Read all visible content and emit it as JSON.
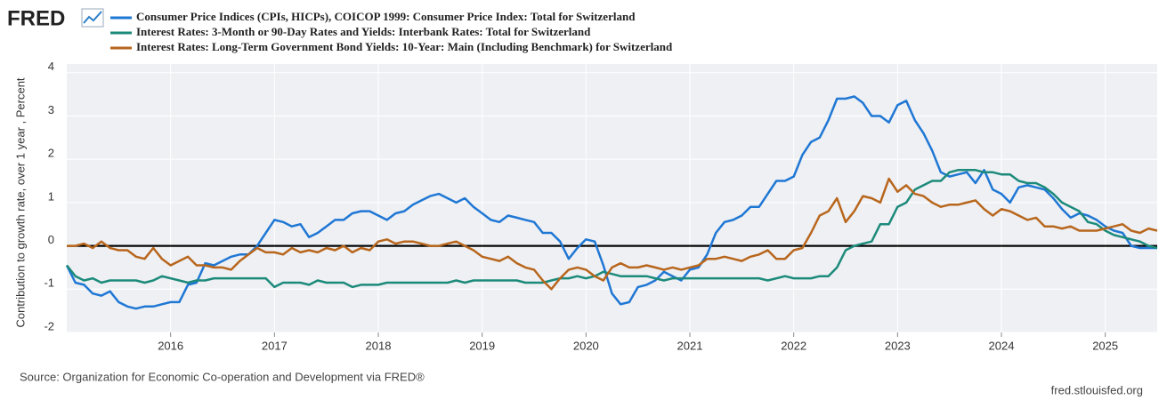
{
  "logo": "FRED",
  "chart_data": {
    "type": "line",
    "y_label": "Contribution to growth rate, over 1 year , Percent",
    "source": "Source: Organization for Economic Co-operation and Development via FRED®",
    "site": "fred.stlouisfed.org",
    "xlim": [
      "2015-01",
      "2025-07"
    ],
    "xticks": [
      2016,
      2017,
      2018,
      2019,
      2020,
      2021,
      2022,
      2023,
      2024,
      2025
    ],
    "ylim": [
      -2,
      4.2
    ],
    "yticks": [
      -2,
      -1,
      0,
      1,
      2,
      3,
      4
    ],
    "grid": true,
    "x": [
      "2015-01",
      "2015-02",
      "2015-03",
      "2015-04",
      "2015-05",
      "2015-06",
      "2015-07",
      "2015-08",
      "2015-09",
      "2015-10",
      "2015-11",
      "2015-12",
      "2016-01",
      "2016-02",
      "2016-03",
      "2016-04",
      "2016-05",
      "2016-06",
      "2016-07",
      "2016-08",
      "2016-09",
      "2016-10",
      "2016-11",
      "2016-12",
      "2017-01",
      "2017-02",
      "2017-03",
      "2017-04",
      "2017-05",
      "2017-06",
      "2017-07",
      "2017-08",
      "2017-09",
      "2017-10",
      "2017-11",
      "2017-12",
      "2018-01",
      "2018-02",
      "2018-03",
      "2018-04",
      "2018-05",
      "2018-06",
      "2018-07",
      "2018-08",
      "2018-09",
      "2018-10",
      "2018-11",
      "2018-12",
      "2019-01",
      "2019-02",
      "2019-03",
      "2019-04",
      "2019-05",
      "2019-06",
      "2019-07",
      "2019-08",
      "2019-09",
      "2019-10",
      "2019-11",
      "2019-12",
      "2020-01",
      "2020-02",
      "2020-03",
      "2020-04",
      "2020-05",
      "2020-06",
      "2020-07",
      "2020-08",
      "2020-09",
      "2020-10",
      "2020-11",
      "2020-12",
      "2021-01",
      "2021-02",
      "2021-03",
      "2021-04",
      "2021-05",
      "2021-06",
      "2021-07",
      "2021-08",
      "2021-09",
      "2021-10",
      "2021-11",
      "2021-12",
      "2022-01",
      "2022-02",
      "2022-03",
      "2022-04",
      "2022-05",
      "2022-06",
      "2022-07",
      "2022-08",
      "2022-09",
      "2022-10",
      "2022-11",
      "2022-12",
      "2023-01",
      "2023-02",
      "2023-03",
      "2023-04",
      "2023-05",
      "2023-06",
      "2023-07",
      "2023-08",
      "2023-09",
      "2023-10",
      "2023-11",
      "2023-12",
      "2024-01",
      "2024-02",
      "2024-03",
      "2024-04",
      "2024-05",
      "2024-06",
      "2024-07",
      "2024-08",
      "2024-09",
      "2024-10",
      "2024-11",
      "2024-12",
      "2025-01",
      "2025-02",
      "2025-03",
      "2025-04",
      "2025-05",
      "2025-06",
      "2025-07"
    ],
    "series": [
      {
        "name": "Consumer Price Indices (CPIs, HICPs), COICOP 1999: Consumer Price Index: Total for Switzerland",
        "color": "#1f77d4",
        "values": [
          -0.45,
          -0.85,
          -0.9,
          -1.1,
          -1.15,
          -1.05,
          -1.3,
          -1.4,
          -1.45,
          -1.4,
          -1.4,
          -1.35,
          -1.3,
          -1.3,
          -0.9,
          -0.85,
          -0.4,
          -0.45,
          -0.35,
          -0.25,
          -0.2,
          -0.2,
          0.0,
          0.3,
          0.6,
          0.55,
          0.45,
          0.5,
          0.2,
          0.3,
          0.45,
          0.6,
          0.6,
          0.75,
          0.8,
          0.8,
          0.7,
          0.6,
          0.75,
          0.8,
          0.95,
          1.05,
          1.15,
          1.2,
          1.1,
          1.0,
          1.1,
          0.9,
          0.75,
          0.6,
          0.55,
          0.7,
          0.65,
          0.6,
          0.55,
          0.3,
          0.3,
          0.1,
          -0.3,
          -0.05,
          0.15,
          0.1,
          -0.45,
          -1.1,
          -1.35,
          -1.3,
          -0.95,
          -0.9,
          -0.8,
          -0.6,
          -0.7,
          -0.8,
          -0.55,
          -0.5,
          -0.2,
          0.3,
          0.55,
          0.6,
          0.7,
          0.9,
          0.9,
          1.2,
          1.5,
          1.5,
          1.6,
          2.1,
          2.4,
          2.5,
          2.9,
          3.4,
          3.4,
          3.45,
          3.3,
          3.0,
          3.0,
          2.85,
          3.25,
          3.35,
          2.9,
          2.6,
          2.2,
          1.7,
          1.6,
          1.65,
          1.7,
          1.45,
          1.75,
          1.3,
          1.2,
          1.0,
          1.35,
          1.4,
          1.35,
          1.3,
          1.1,
          0.85,
          0.65,
          0.75,
          0.7,
          0.6,
          0.45,
          0.35,
          0.3,
          0.0,
          -0.05,
          -0.05,
          -0.05
        ]
      },
      {
        "name": "Interest Rates: 3-Month or 90-Day Rates and Yields: Interbank Rates: Total for Switzerland",
        "color": "#1c8a7a",
        "values": [
          -0.45,
          -0.7,
          -0.8,
          -0.75,
          -0.85,
          -0.8,
          -0.8,
          -0.8,
          -0.8,
          -0.85,
          -0.8,
          -0.7,
          -0.75,
          -0.8,
          -0.85,
          -0.8,
          -0.8,
          -0.75,
          -0.75,
          -0.75,
          -0.75,
          -0.75,
          -0.75,
          -0.75,
          -0.95,
          -0.85,
          -0.85,
          -0.85,
          -0.9,
          -0.8,
          -0.85,
          -0.85,
          -0.85,
          -0.95,
          -0.9,
          -0.9,
          -0.9,
          -0.85,
          -0.85,
          -0.85,
          -0.85,
          -0.85,
          -0.85,
          -0.85,
          -0.85,
          -0.8,
          -0.85,
          -0.8,
          -0.8,
          -0.8,
          -0.8,
          -0.8,
          -0.8,
          -0.85,
          -0.85,
          -0.85,
          -0.8,
          -0.75,
          -0.75,
          -0.7,
          -0.75,
          -0.7,
          -0.6,
          -0.65,
          -0.7,
          -0.7,
          -0.7,
          -0.7,
          -0.75,
          -0.8,
          -0.75,
          -0.75,
          -0.75,
          -0.75,
          -0.75,
          -0.75,
          -0.75,
          -0.75,
          -0.75,
          -0.75,
          -0.75,
          -0.8,
          -0.75,
          -0.7,
          -0.75,
          -0.75,
          -0.75,
          -0.7,
          -0.7,
          -0.5,
          -0.1,
          0.0,
          0.05,
          0.1,
          0.5,
          0.5,
          0.9,
          1.0,
          1.3,
          1.4,
          1.5,
          1.5,
          1.7,
          1.75,
          1.75,
          1.75,
          1.7,
          1.7,
          1.65,
          1.65,
          1.5,
          1.45,
          1.45,
          1.35,
          1.2,
          1.0,
          0.9,
          0.8,
          0.55,
          0.5,
          0.35,
          0.25,
          0.2,
          0.15,
          0.1,
          0.0,
          -0.05
        ]
      },
      {
        "name": "Interest Rates: Long-Term Government Bond Yields: 10-Year: Main (Including Benchmark) for Switzerland",
        "color": "#b8661c",
        "values": [
          0.0,
          0.0,
          0.05,
          -0.05,
          0.1,
          -0.05,
          -0.1,
          -0.1,
          -0.25,
          -0.3,
          -0.05,
          -0.3,
          -0.45,
          -0.35,
          -0.25,
          -0.45,
          -0.45,
          -0.5,
          -0.5,
          -0.55,
          -0.35,
          -0.2,
          -0.05,
          -0.15,
          -0.15,
          -0.2,
          -0.05,
          -0.15,
          -0.1,
          -0.15,
          -0.05,
          -0.1,
          0.0,
          -0.15,
          -0.05,
          -0.1,
          0.1,
          0.15,
          0.05,
          0.1,
          0.1,
          0.05,
          0.0,
          0.0,
          0.05,
          0.1,
          0.0,
          -0.1,
          -0.25,
          -0.3,
          -0.35,
          -0.25,
          -0.4,
          -0.5,
          -0.55,
          -0.8,
          -1.0,
          -0.75,
          -0.55,
          -0.5,
          -0.55,
          -0.7,
          -0.8,
          -0.5,
          -0.4,
          -0.5,
          -0.5,
          -0.45,
          -0.5,
          -0.55,
          -0.5,
          -0.55,
          -0.5,
          -0.45,
          -0.3,
          -0.3,
          -0.25,
          -0.3,
          -0.35,
          -0.25,
          -0.2,
          -0.1,
          -0.3,
          -0.3,
          -0.1,
          -0.05,
          0.3,
          0.7,
          0.8,
          1.1,
          0.55,
          0.8,
          1.15,
          1.1,
          1.0,
          1.55,
          1.25,
          1.4,
          1.2,
          1.15,
          1.0,
          0.9,
          0.95,
          0.95,
          1.0,
          1.05,
          0.85,
          0.7,
          0.85,
          0.8,
          0.7,
          0.6,
          0.65,
          0.45,
          0.45,
          0.4,
          0.45,
          0.35,
          0.35,
          0.35,
          0.4,
          0.45,
          0.5,
          0.35,
          0.3,
          0.4,
          0.35
        ]
      }
    ]
  }
}
